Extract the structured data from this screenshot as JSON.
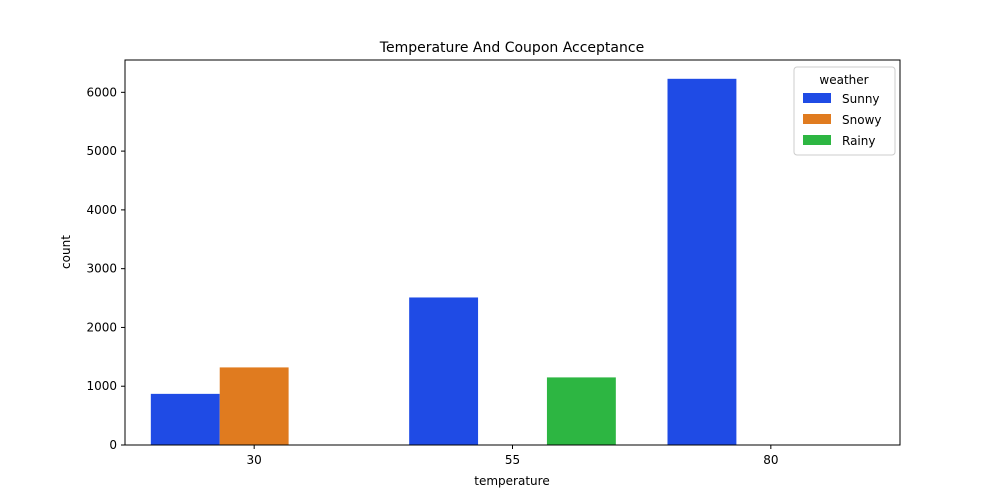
{
  "chart_data": {
    "type": "bar",
    "title": "Temperature And Coupon Acceptance",
    "xlabel": "temperature",
    "ylabel": "count",
    "categories": [
      "30",
      "55",
      "80"
    ],
    "ylim": [
      0,
      6550
    ],
    "yticks": [
      0,
      1000,
      2000,
      3000,
      4000,
      5000,
      6000
    ],
    "grid": false,
    "legend": {
      "title": "weather",
      "position": "top-right"
    },
    "series": [
      {
        "name": "Sunny",
        "color": "#1f4be5",
        "values": [
          870,
          2510,
          6230
        ]
      },
      {
        "name": "Snowy",
        "color": "#e07b1f",
        "values": [
          1320,
          null,
          null
        ]
      },
      {
        "name": "Rainy",
        "color": "#2db642",
        "values": [
          null,
          1150,
          null
        ]
      }
    ]
  }
}
